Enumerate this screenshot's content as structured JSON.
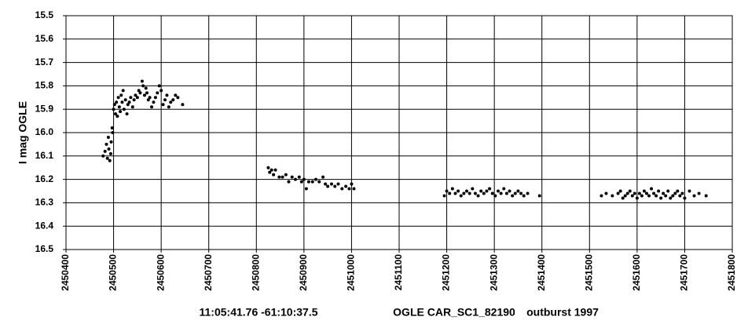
{
  "chart_data": {
    "type": "scatter",
    "y_label": "I mag OGLE",
    "captions": [
      "11:05:41.76 -61:10:37.5",
      "OGLE CAR_SC1_82190",
      "outburst 1997"
    ],
    "color": "#000000",
    "grid": true,
    "xlim": [
      2450400,
      2451800
    ],
    "xticks": [
      2450400,
      2450500,
      2450600,
      2450700,
      2450800,
      2450900,
      2451000,
      2451100,
      2451200,
      2451300,
      2451400,
      2451500,
      2451600,
      2451700,
      2451800
    ],
    "ylim": [
      16.5,
      15.5
    ],
    "yticks": [
      15.5,
      15.6,
      15.7,
      15.8,
      15.9,
      {
        "value": 16,
        "label": "16.0"
      },
      16.1,
      16.2,
      16.3,
      16.4,
      16.5
    ],
    "x": [
      2450478,
      2450482,
      2450485,
      2450487,
      2450489,
      2450490,
      2450492,
      2450494,
      2450495,
      2450497,
      2450498,
      2450500,
      2450502,
      2450504,
      2450506,
      2450508,
      2450510,
      2450512,
      2450514,
      2450516,
      2450518,
      2450520,
      2450522,
      2450525,
      2450528,
      2450530,
      2450533,
      2450536,
      2450540,
      2450543,
      2450546,
      2450550,
      2450553,
      2450556,
      2450560,
      2450562,
      2450565,
      2450568,
      2450570,
      2450573,
      2450576,
      2450580,
      2450584,
      2450588,
      2450592,
      2450596,
      2450600,
      2450604,
      2450608,
      2450612,
      2450616,
      2450620,
      2450625,
      2450630,
      2450635,
      2450645,
      2450825,
      2450828,
      2450832,
      2450836,
      2450840,
      2450848,
      2450855,
      2450862,
      2450868,
      2450875,
      2450882,
      2450890,
      2450895,
      2450900,
      2450905,
      2450910,
      2450918,
      2450925,
      2450932,
      2450940,
      2450945,
      2450950,
      2450958,
      2450965,
      2450972,
      2450980,
      2450988,
      2450995,
      2451000,
      2451005,
      2451195,
      2451200,
      2451206,
      2451212,
      2451218,
      2451224,
      2451230,
      2451236,
      2451242,
      2451248,
      2451254,
      2451260,
      2451266,
      2451272,
      2451278,
      2451284,
      2451290,
      2451296,
      2451302,
      2451308,
      2451314,
      2451320,
      2451326,
      2451332,
      2451338,
      2451344,
      2451350,
      2451356,
      2451362,
      2451370,
      2451395,
      2451525,
      2451535,
      2451548,
      2451560,
      2451565,
      2451570,
      2451575,
      2451580,
      2451585,
      2451590,
      2451595,
      2451600,
      2451605,
      2451610,
      2451615,
      2451620,
      2451625,
      2451630,
      2451635,
      2451640,
      2451645,
      2451650,
      2451655,
      2451660,
      2451665,
      2451670,
      2451675,
      2451680,
      2451685,
      2451690,
      2451695,
      2451700,
      2451710,
      2451720,
      2451730,
      2451745
    ],
    "values": [
      16.1,
      16.08,
      16.05,
      16.11,
      16.02,
      16.07,
      16.12,
      16.09,
      16.04,
      15.98,
      16.0,
      15.9,
      15.88,
      15.92,
      15.87,
      15.93,
      15.85,
      15.89,
      15.91,
      15.84,
      15.87,
      15.82,
      15.9,
      15.86,
      15.92,
      15.88,
      15.87,
      15.85,
      15.89,
      15.86,
      15.84,
      15.85,
      15.82,
      15.83,
      15.78,
      15.8,
      15.84,
      15.81,
      15.83,
      15.86,
      15.85,
      15.89,
      15.87,
      15.85,
      15.83,
      15.8,
      15.82,
      15.88,
      15.86,
      15.84,
      15.89,
      15.87,
      15.86,
      15.84,
      15.85,
      15.88,
      16.15,
      16.17,
      16.16,
      16.18,
      16.16,
      16.19,
      16.19,
      16.18,
      16.21,
      16.19,
      16.2,
      16.19,
      16.21,
      16.2,
      16.24,
      16.21,
      16.21,
      16.2,
      16.21,
      16.19,
      16.22,
      16.23,
      16.22,
      16.23,
      16.22,
      16.24,
      16.23,
      16.24,
      16.22,
      16.24,
      16.27,
      16.25,
      16.26,
      16.24,
      16.26,
      16.25,
      16.27,
      16.26,
      16.25,
      16.26,
      16.24,
      16.26,
      16.27,
      16.25,
      16.26,
      16.25,
      16.24,
      16.26,
      16.27,
      16.25,
      16.26,
      16.24,
      16.26,
      16.25,
      16.27,
      16.26,
      16.25,
      16.26,
      16.27,
      16.26,
      16.27,
      16.27,
      16.26,
      16.27,
      16.26,
      16.25,
      16.28,
      16.27,
      16.26,
      16.25,
      16.27,
      16.26,
      16.28,
      16.26,
      16.27,
      16.25,
      16.26,
      16.27,
      16.24,
      16.26,
      16.27,
      16.25,
      16.28,
      16.26,
      16.27,
      16.25,
      16.28,
      16.27,
      16.26,
      16.25,
      16.27,
      16.26,
      16.28,
      16.25,
      16.27,
      16.26,
      16.27
    ]
  }
}
